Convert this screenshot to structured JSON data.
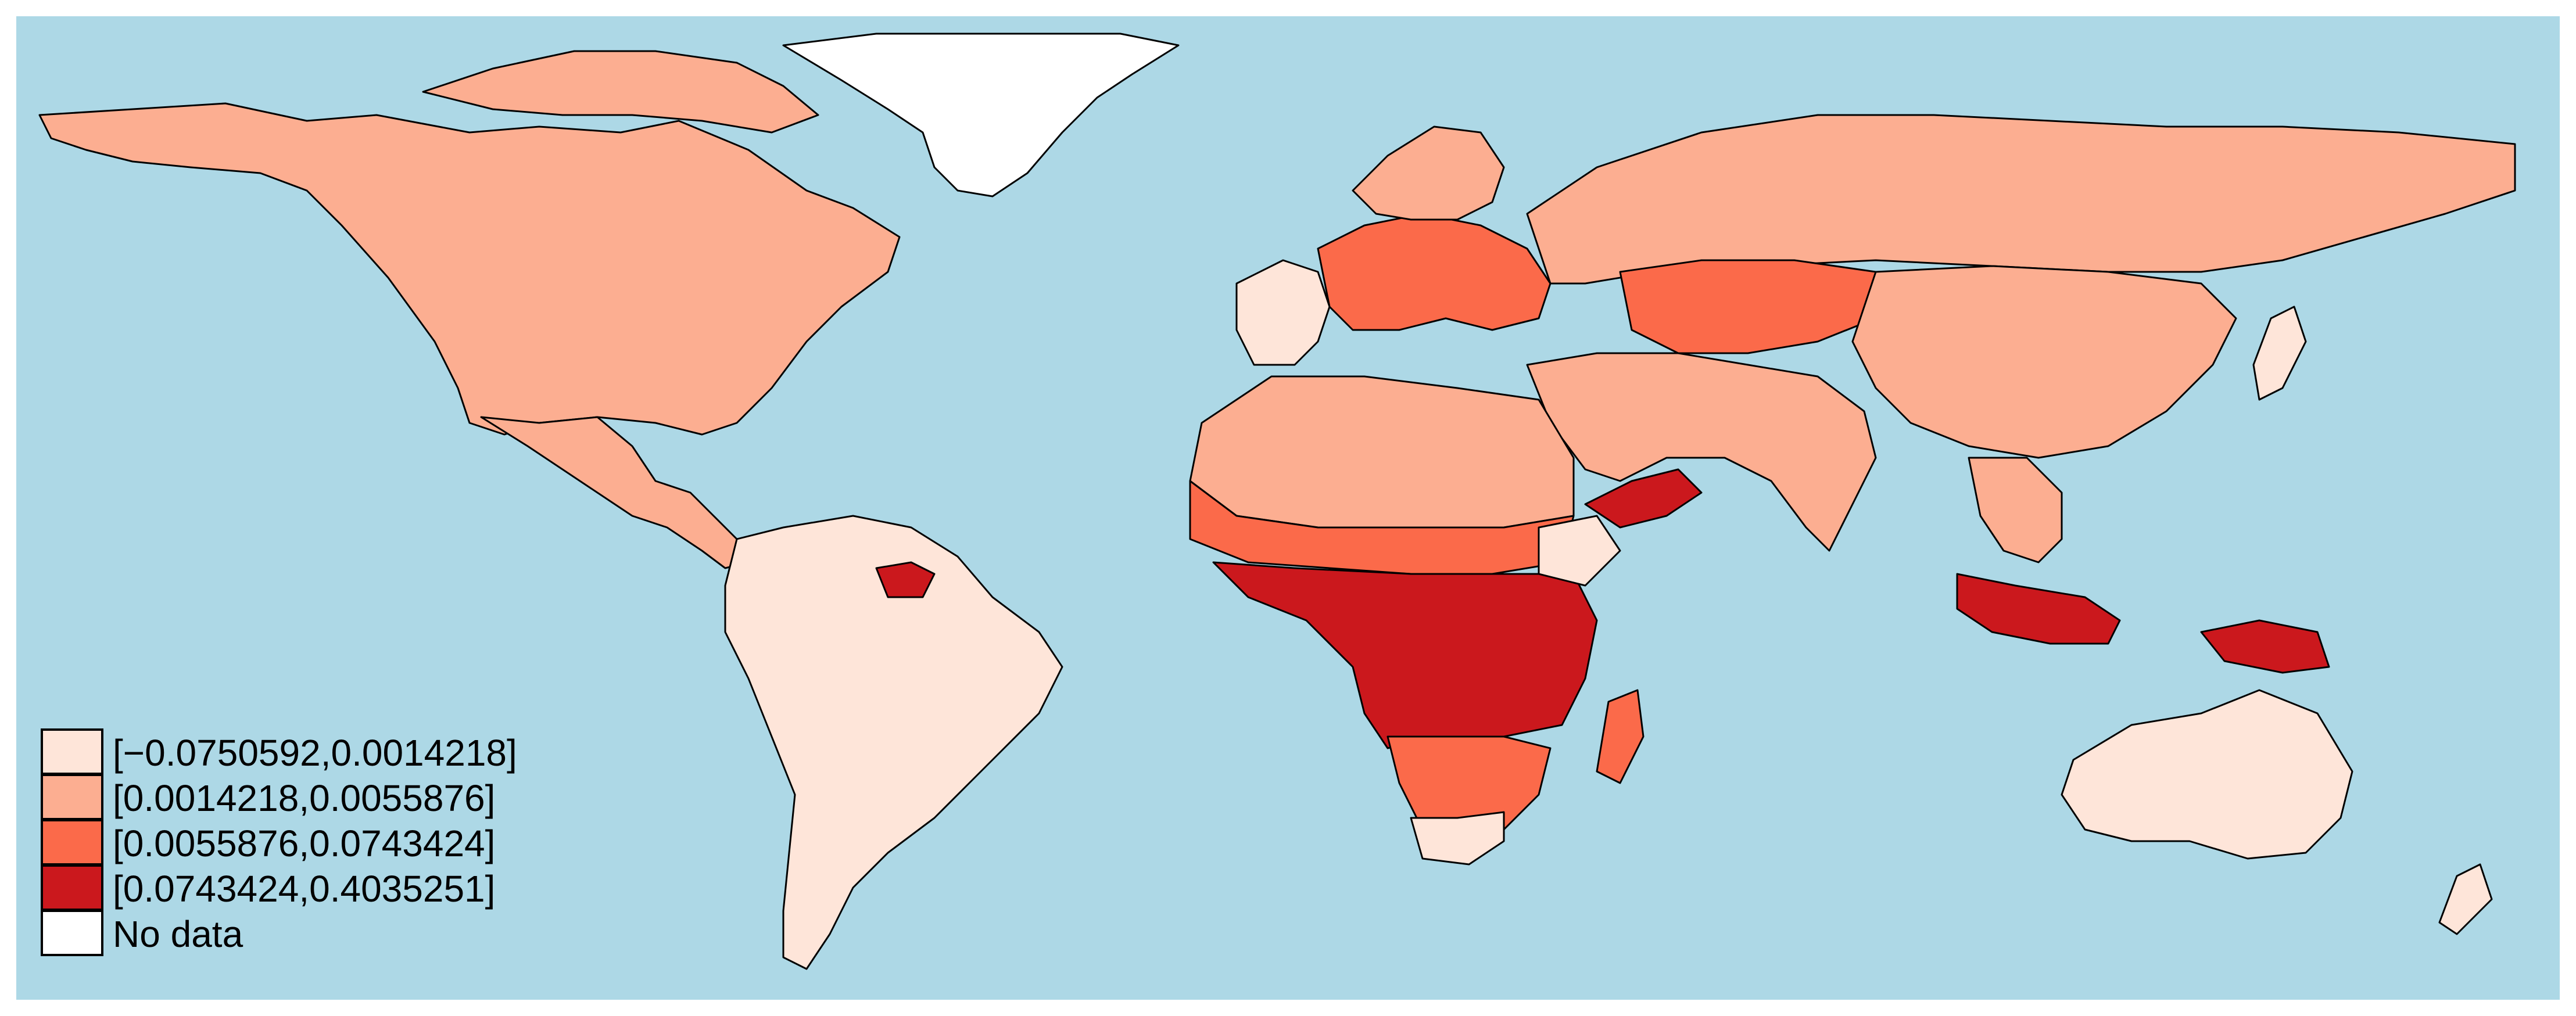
{
  "map": {
    "ocean_color": "#add8e6",
    "legend": {
      "entries": [
        {
          "label": "[−0.0750592,0.0014218]",
          "color": "#fee5d9"
        },
        {
          "label": "[0.0014218,0.0055876]",
          "color": "#fcae91"
        },
        {
          "label": "[0.0055876,0.0743424]",
          "color": "#fb6a4a"
        },
        {
          "label": "[0.0743424,0.4035251]",
          "color": "#cb181d"
        },
        {
          "label": "No data",
          "color": "#ffffff"
        }
      ]
    }
  }
}
